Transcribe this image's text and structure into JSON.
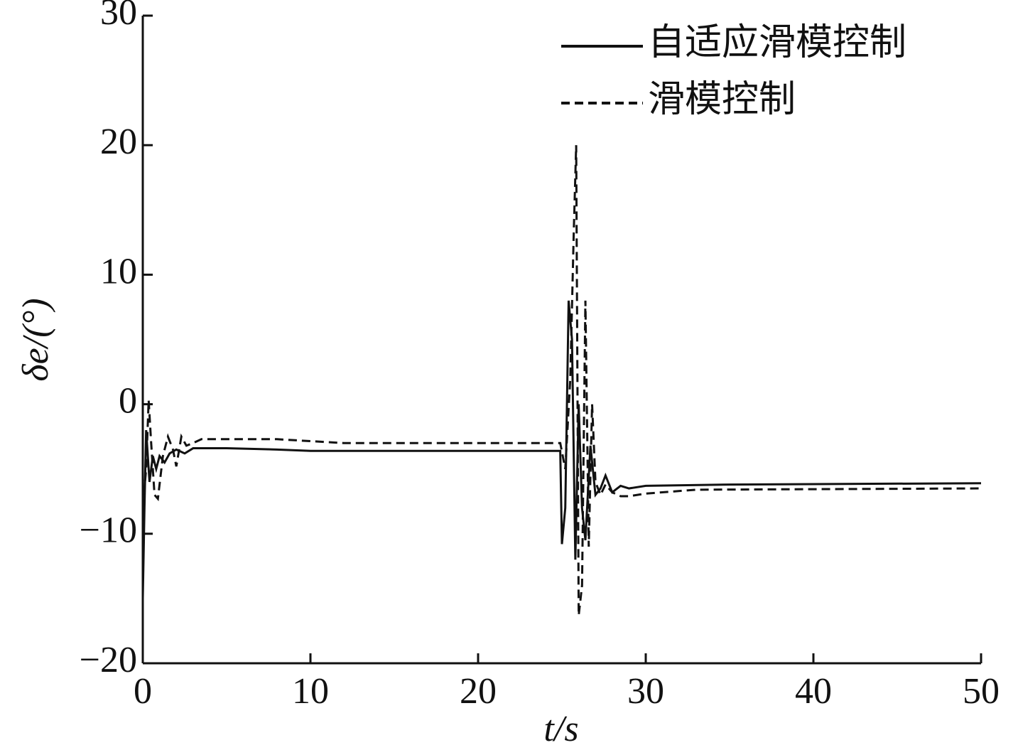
{
  "chart_data": {
    "type": "line",
    "x_label": "t/s",
    "y_label": "δe/(°)",
    "xlim": [
      0,
      50
    ],
    "xticks": [
      0,
      10,
      20,
      30,
      40,
      50
    ],
    "ylim": [
      -20,
      30
    ],
    "yticks": [
      {
        "value": -20,
        "label": "−20"
      },
      {
        "value": -10,
        "label": "−10"
      },
      0,
      10,
      20,
      30
    ],
    "legend": "upper right",
    "series": [
      {
        "name": "自适应滑模控制",
        "color": "#111111",
        "linestyle": "solid",
        "x": [
          0,
          0.1,
          0.2,
          0.4,
          0.6,
          0.8,
          1.0,
          1.3,
          1.6,
          2,
          2.5,
          3,
          5,
          8,
          10,
          20,
          24.9,
          25.0,
          25.2,
          25.4,
          25.6,
          25.8,
          26.0,
          26.2,
          26.4,
          26.7,
          27.0,
          27.3,
          27.6,
          28,
          28.5,
          29,
          30,
          35,
          50
        ],
        "values": [
          -15,
          -8,
          -2,
          -6,
          -4,
          -5,
          -4,
          -4.5,
          -3.8,
          -3.5,
          -3.8,
          -3.4,
          -3.4,
          -3.5,
          -3.6,
          -3.6,
          -3.6,
          -10.8,
          -8,
          8,
          5,
          -12,
          0,
          -8,
          -10.5,
          -3.2,
          -7,
          -6.5,
          -5.5,
          -6.8,
          -6.3,
          -6.5,
          -6.3,
          -6.2,
          -6.1
        ]
      },
      {
        "name": "滑模控制",
        "color": "#111111",
        "linestyle": "dashed",
        "x": [
          0,
          0.2,
          0.35,
          0.5,
          0.7,
          0.9,
          1.2,
          1.5,
          1.8,
          2,
          2.3,
          2.6,
          3,
          3.5,
          8,
          12,
          24.9,
          25.2,
          25.5,
          25.7,
          25.85,
          26.0,
          26.2,
          26.4,
          26.6,
          26.8,
          27.0,
          27.3,
          27.6,
          28,
          28.5,
          29,
          30,
          33,
          50
        ],
        "values": [
          -8,
          -5,
          0.3,
          -3,
          -7,
          -7.3,
          -4,
          -2.5,
          -3.5,
          -4.8,
          -2.5,
          -3.2,
          -3.0,
          -2.7,
          -2.7,
          -3.0,
          -3.0,
          -5,
          2,
          13,
          20,
          -16.3,
          -14,
          8,
          -11,
          0,
          -6,
          -7,
          -6.2,
          -6.8,
          -7.1,
          -7.1,
          -6.9,
          -6.6,
          -6.5
        ]
      }
    ]
  }
}
